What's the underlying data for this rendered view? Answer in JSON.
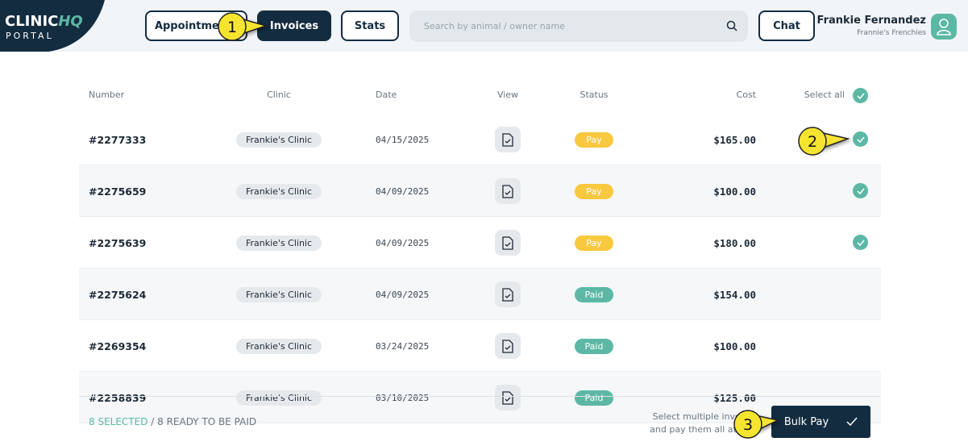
{
  "header": {
    "logo": {
      "brand": "CLINIC",
      "accent": "HQ",
      "sub": "PORTAL"
    },
    "nav": [
      "Appointments",
      "Invoices",
      "Stats"
    ],
    "search_placeholder": "Search by animal / owner name",
    "chat": "Chat",
    "user": {
      "name": "Frankie Fernandez",
      "org": "Frannie's Frenchies"
    }
  },
  "table": {
    "columns": [
      "Number",
      "Clinic",
      "Date",
      "View",
      "Status",
      "Cost",
      "Select all"
    ],
    "rows": [
      {
        "number": "#2277333",
        "clinic": "Frankie's Clinic",
        "date": "04/15/2025",
        "status": "Pay",
        "cost": "$165.00",
        "selected": true
      },
      {
        "number": "#2275659",
        "clinic": "Frankie's Clinic",
        "date": "04/09/2025",
        "status": "Pay",
        "cost": "$100.00",
        "selected": true
      },
      {
        "number": "#2275639",
        "clinic": "Frankie's Clinic",
        "date": "04/09/2025",
        "status": "Pay",
        "cost": "$180.00",
        "selected": true
      },
      {
        "number": "#2275624",
        "clinic": "Frankie's Clinic",
        "date": "04/09/2025",
        "status": "Paid",
        "cost": "$154.00",
        "selected": false
      },
      {
        "number": "#2269354",
        "clinic": "Frankie's Clinic",
        "date": "03/24/2025",
        "status": "Paid",
        "cost": "$100.00",
        "selected": false
      },
      {
        "number": "#2258839",
        "clinic": "Frankie's Clinic",
        "date": "03/10/2025",
        "status": "Paid",
        "cost": "$125.00",
        "selected": false
      }
    ]
  },
  "footer": {
    "selected": "8 SELECTED",
    "ready": "/ 8 READY TO BE PAID",
    "hint": [
      "Select multiple invoices",
      "and pay them all at once"
    ],
    "button": "Bulk Pay"
  },
  "callouts": [
    "1",
    "2",
    "3"
  ]
}
